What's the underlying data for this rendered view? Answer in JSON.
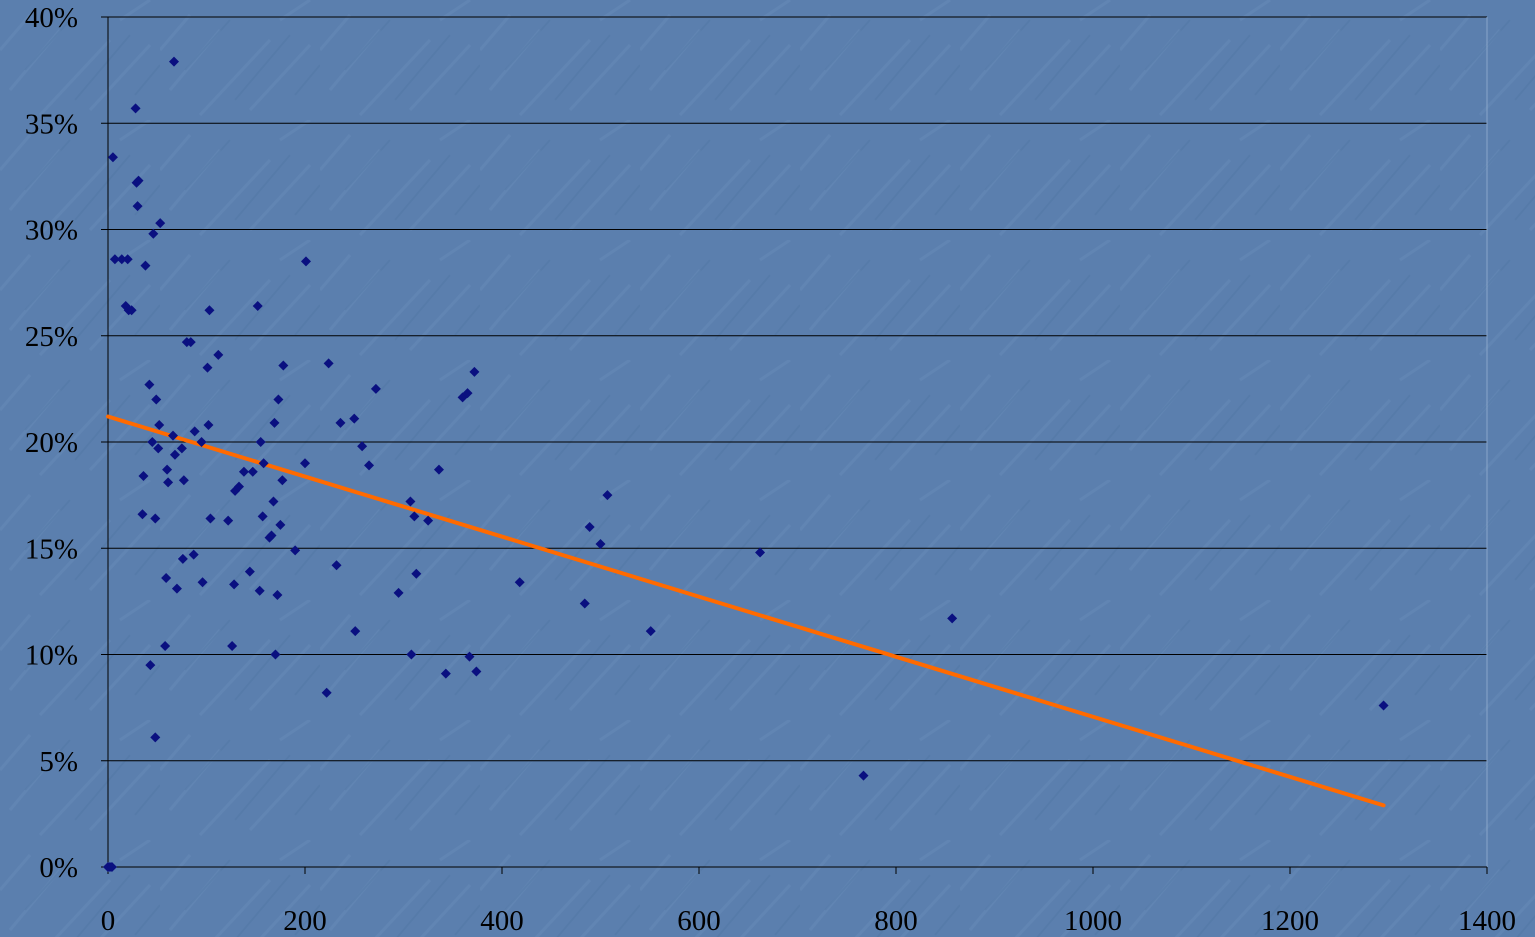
{
  "chart_data": {
    "type": "scatter",
    "title": "",
    "xlabel": "",
    "ylabel": "",
    "xlim": [
      0,
      1400
    ],
    "ylim": [
      0,
      0.4
    ],
    "x_ticks": [
      0,
      200,
      400,
      600,
      800,
      1000,
      1200,
      1400
    ],
    "x_tick_labels": [
      "0",
      "200",
      "400",
      "600",
      "800",
      "1000",
      "1200",
      "1400"
    ],
    "y_ticks": [
      0,
      0.05,
      0.1,
      0.15,
      0.2,
      0.25,
      0.3,
      0.35,
      0.4
    ],
    "y_tick_labels": [
      "0%",
      "5%",
      "10%",
      "15%",
      "20%",
      "25%",
      "30%",
      "35%",
      "40%"
    ],
    "grid": "horizontal",
    "legend": "none",
    "colors": {
      "background": "#5b7fae",
      "points": "#0a1080",
      "trendline": "#ff6a00",
      "gridline": "#000000"
    },
    "series": [
      {
        "kind": "points",
        "points": [
          [
            0,
            0.0
          ],
          [
            2,
            0.0
          ],
          [
            4,
            0.0
          ],
          [
            5,
            0.334
          ],
          [
            7,
            0.286
          ],
          [
            14,
            0.286
          ],
          [
            20,
            0.286
          ],
          [
            18,
            0.264
          ],
          [
            21,
            0.262
          ],
          [
            24,
            0.262
          ],
          [
            28,
            0.357
          ],
          [
            29,
            0.322
          ],
          [
            30,
            0.311
          ],
          [
            31,
            0.323
          ],
          [
            35,
            0.166
          ],
          [
            36,
            0.184
          ],
          [
            38,
            0.283
          ],
          [
            42,
            0.227
          ],
          [
            43,
            0.095
          ],
          [
            45,
            0.2
          ],
          [
            46,
            0.298
          ],
          [
            48,
            0.164
          ],
          [
            48,
            0.061
          ],
          [
            49,
            0.22
          ],
          [
            51,
            0.197
          ],
          [
            52,
            0.208
          ],
          [
            53,
            0.303
          ],
          [
            58,
            0.104
          ],
          [
            59,
            0.136
          ],
          [
            60,
            0.187
          ],
          [
            61,
            0.181
          ],
          [
            66,
            0.203
          ],
          [
            67,
            0.379
          ],
          [
            68,
            0.194
          ],
          [
            70,
            0.131
          ],
          [
            75,
            0.197
          ],
          [
            76,
            0.145
          ],
          [
            77,
            0.182
          ],
          [
            80,
            0.247
          ],
          [
            84,
            0.247
          ],
          [
            87,
            0.147
          ],
          [
            88,
            0.205
          ],
          [
            95,
            0.2
          ],
          [
            96,
            0.134
          ],
          [
            101,
            0.235
          ],
          [
            102,
            0.208
          ],
          [
            103,
            0.262
          ],
          [
            104,
            0.164
          ],
          [
            112,
            0.241
          ],
          [
            122,
            0.163
          ],
          [
            126,
            0.104
          ],
          [
            128,
            0.133
          ],
          [
            129,
            0.177
          ],
          [
            133,
            0.179
          ],
          [
            138,
            0.186
          ],
          [
            144,
            0.139
          ],
          [
            147,
            0.186
          ],
          [
            152,
            0.264
          ],
          [
            154,
            0.13
          ],
          [
            155,
            0.2
          ],
          [
            157,
            0.165
          ],
          [
            158,
            0.19
          ],
          [
            164,
            0.155
          ],
          [
            166,
            0.156
          ],
          [
            168,
            0.172
          ],
          [
            169,
            0.209
          ],
          [
            170,
            0.1
          ],
          [
            172,
            0.128
          ],
          [
            173,
            0.22
          ],
          [
            175,
            0.161
          ],
          [
            177,
            0.182
          ],
          [
            178,
            0.236
          ],
          [
            190,
            0.149
          ],
          [
            200,
            0.19
          ],
          [
            201,
            0.285
          ],
          [
            222,
            0.082
          ],
          [
            224,
            0.237
          ],
          [
            232,
            0.142
          ],
          [
            236,
            0.209
          ],
          [
            250,
            0.211
          ],
          [
            251,
            0.111
          ],
          [
            258,
            0.198
          ],
          [
            265,
            0.189
          ],
          [
            272,
            0.225
          ],
          [
            295,
            0.129
          ],
          [
            307,
            0.172
          ],
          [
            308,
            0.1
          ],
          [
            311,
            0.165
          ],
          [
            313,
            0.138
          ],
          [
            325,
            0.163
          ],
          [
            336,
            0.187
          ],
          [
            343,
            0.091
          ],
          [
            360,
            0.221
          ],
          [
            365,
            0.223
          ],
          [
            367,
            0.099
          ],
          [
            372,
            0.233
          ],
          [
            374,
            0.092
          ],
          [
            418,
            0.134
          ],
          [
            484,
            0.124
          ],
          [
            489,
            0.16
          ],
          [
            500,
            0.152
          ],
          [
            507,
            0.175
          ],
          [
            551,
            0.111
          ],
          [
            662,
            0.148
          ],
          [
            767,
            0.043
          ],
          [
            857,
            0.117
          ],
          [
            1295,
            0.076
          ]
        ]
      },
      {
        "kind": "trendline",
        "line": [
          [
            0,
            0.212
          ],
          [
            1295,
            0.029
          ]
        ]
      }
    ]
  }
}
